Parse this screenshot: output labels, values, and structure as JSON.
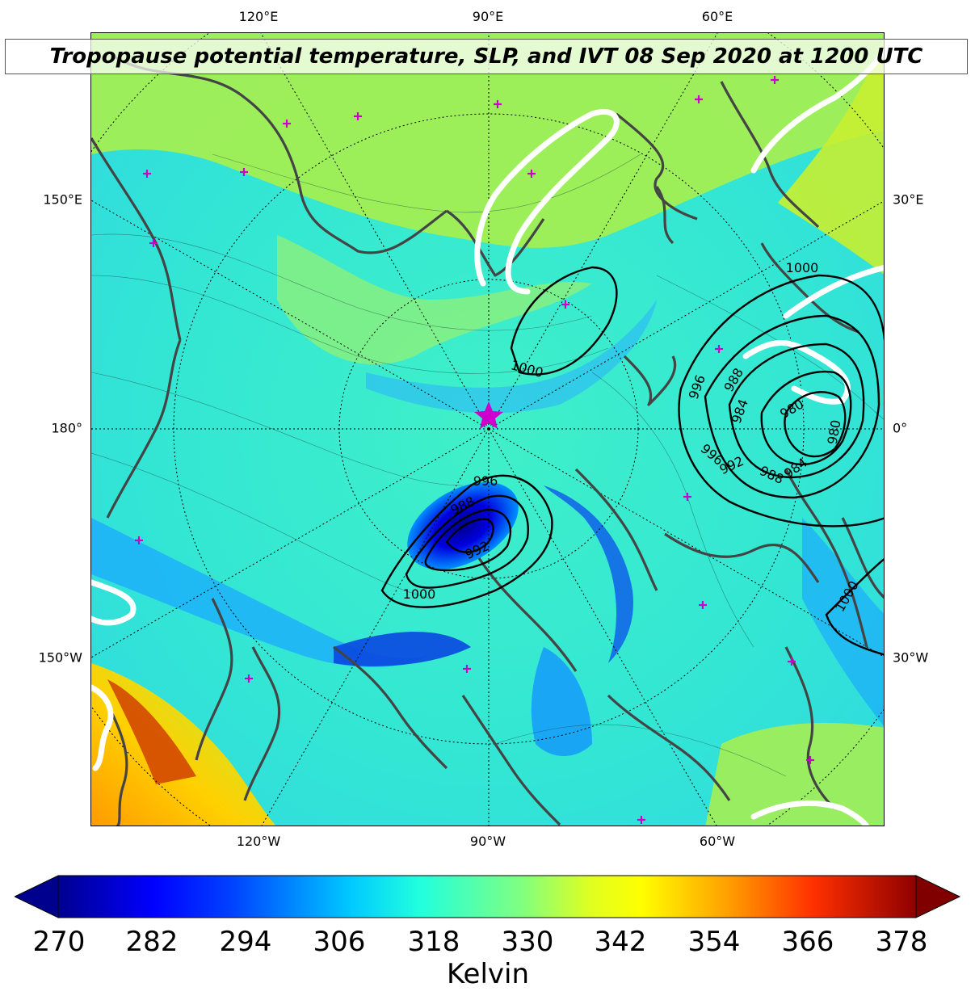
{
  "title": "Tropopause potential temperature, SLP, and IVT 08 Sep 2020 at 1200 UTC",
  "longitude_labels": {
    "top": [
      "120°E",
      "90°E",
      "60°E"
    ],
    "bottom": [
      "120°W",
      "90°W",
      "60°W"
    ],
    "left": [
      "150°E",
      "180°",
      "150°W"
    ],
    "right": [
      "30°E",
      "0°",
      "30°W"
    ]
  },
  "slp_contour_labels": [
    "1000",
    "1000",
    "996",
    "988",
    "992",
    "1000",
    "996",
    "988",
    "984",
    "980",
    "980",
    "996",
    "992",
    "988",
    "984",
    "1000"
  ],
  "colorbar": {
    "ticks": [
      "270",
      "282",
      "294",
      "306",
      "318",
      "330",
      "342",
      "354",
      "366",
      "378"
    ],
    "label": "Kelvin",
    "colormap": "jet",
    "extend": "both"
  },
  "colors": {
    "coastline": "#444444",
    "station_marker": "#cc00cc",
    "pole_star": "#cc00cc",
    "ivt_contour": "#ffffff",
    "slp_contour": "#000000"
  },
  "markers": {
    "pole_marker": "star-icon",
    "station_marker": "plus-icon"
  }
}
